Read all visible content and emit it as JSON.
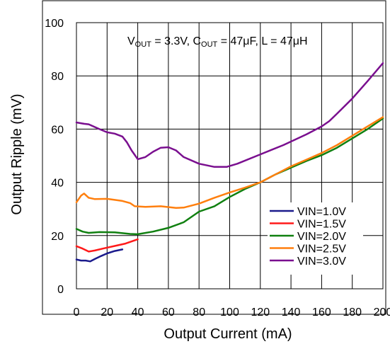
{
  "chart_data": {
    "type": "line",
    "title": "",
    "annotation": "VOUT = 3.3V, COUT = 47μF, L = 47μH",
    "annotation_parts": [
      {
        "text": "V",
        "sub": false
      },
      {
        "text": "OUT",
        "sub": true
      },
      {
        "text": " = 3.3V, C",
        "sub": false
      },
      {
        "text": "OUT",
        "sub": true
      },
      {
        "text": " = 47μF, L = 47μH",
        "sub": false
      }
    ],
    "xlabel": "Output Current (mA)",
    "ylabel": "Output Ripple (mV)",
    "xlim": [
      0,
      200
    ],
    "ylim": [
      0,
      100
    ],
    "x_ticks": [
      0,
      20,
      40,
      60,
      80,
      100,
      120,
      140,
      160,
      180,
      200
    ],
    "y_ticks": [
      0,
      20,
      40,
      60,
      80,
      100
    ],
    "grid": true,
    "legend_position": "bottom-right",
    "series": [
      {
        "name": "VIN=1.0V",
        "color": "#1a1a8c",
        "points": [
          [
            0,
            11
          ],
          [
            3,
            10.6
          ],
          [
            6,
            10.6
          ],
          [
            9,
            10.3
          ],
          [
            12,
            11.2
          ],
          [
            16,
            12.3
          ],
          [
            20,
            13.3
          ],
          [
            25,
            14.2
          ],
          [
            30,
            14.8
          ]
        ]
      },
      {
        "name": "VIN=1.5V",
        "color": "#ff1a1a",
        "points": [
          [
            0,
            16
          ],
          [
            4,
            15.1
          ],
          [
            8,
            14
          ],
          [
            12,
            14.4
          ],
          [
            18,
            15.2
          ],
          [
            25,
            16.1
          ],
          [
            32,
            17
          ],
          [
            40,
            18.6
          ]
        ]
      },
      {
        "name": "VIN=2.0V",
        "color": "#108010",
        "points": [
          [
            0,
            22.5
          ],
          [
            4,
            21.5
          ],
          [
            8,
            21
          ],
          [
            15,
            21.3
          ],
          [
            25,
            21.2
          ],
          [
            35,
            20.6
          ],
          [
            40,
            20.5
          ],
          [
            50,
            21.5
          ],
          [
            60,
            22.9
          ],
          [
            70,
            25
          ],
          [
            80,
            29
          ],
          [
            90,
            31
          ],
          [
            100,
            34.5
          ],
          [
            110,
            37.5
          ],
          [
            120,
            40
          ],
          [
            130,
            43
          ],
          [
            140,
            45.5
          ],
          [
            150,
            48
          ],
          [
            160,
            50.2
          ],
          [
            170,
            53
          ],
          [
            180,
            56.5
          ],
          [
            190,
            60
          ],
          [
            200,
            64
          ]
        ]
      },
      {
        "name": "VIN=2.5V",
        "color": "#ff7f0e",
        "points": [
          [
            0,
            32.5
          ],
          [
            3,
            35
          ],
          [
            5,
            35.8
          ],
          [
            8,
            34.2
          ],
          [
            12,
            33.7
          ],
          [
            20,
            33.8
          ],
          [
            30,
            33
          ],
          [
            35,
            32.2
          ],
          [
            38,
            31
          ],
          [
            45,
            30.8
          ],
          [
            55,
            31
          ],
          [
            65,
            30.4
          ],
          [
            70,
            30.5
          ],
          [
            80,
            32
          ],
          [
            90,
            34.2
          ],
          [
            100,
            36.2
          ],
          [
            110,
            38
          ],
          [
            120,
            40
          ],
          [
            130,
            43
          ],
          [
            140,
            46
          ],
          [
            150,
            48.5
          ],
          [
            160,
            51
          ],
          [
            170,
            54
          ],
          [
            180,
            57.5
          ],
          [
            190,
            61
          ],
          [
            200,
            64.5
          ]
        ]
      },
      {
        "name": "VIN=3.0V",
        "color": "#7a0f8f",
        "points": [
          [
            0,
            62.5
          ],
          [
            5,
            62
          ],
          [
            8,
            61.8
          ],
          [
            15,
            60
          ],
          [
            20,
            58.8
          ],
          [
            25,
            58.3
          ],
          [
            30,
            57.2
          ],
          [
            33,
            55
          ],
          [
            36,
            52
          ],
          [
            40,
            48.7
          ],
          [
            45,
            49.5
          ],
          [
            50,
            51.5
          ],
          [
            55,
            53
          ],
          [
            60,
            53.2
          ],
          [
            65,
            52
          ],
          [
            70,
            49.5
          ],
          [
            80,
            47
          ],
          [
            90,
            45.8
          ],
          [
            98,
            45.8
          ],
          [
            105,
            47
          ],
          [
            120,
            50.5
          ],
          [
            135,
            54
          ],
          [
            150,
            58
          ],
          [
            160,
            61
          ],
          [
            165,
            63
          ],
          [
            170,
            65.8
          ],
          [
            180,
            71.5
          ],
          [
            190,
            78
          ],
          [
            200,
            84.8
          ]
        ]
      }
    ]
  }
}
